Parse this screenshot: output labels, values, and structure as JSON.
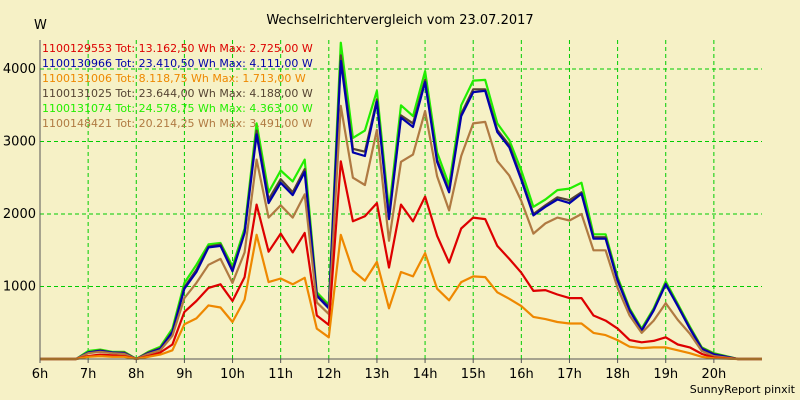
{
  "chart_data": {
    "type": "line",
    "title": "Wechselrichtervergleich vom 23.07.2017",
    "ylabel": "W",
    "xlabel": "",
    "footer": "SunnyReport pinxit",
    "ylim": [
      0,
      4400
    ],
    "xlim": [
      6.0,
      21.0
    ],
    "yticks": [
      1000,
      2000,
      3000,
      4000
    ],
    "xticks": [
      {
        "v": 6,
        "label": "6h"
      },
      {
        "v": 7,
        "label": "7h"
      },
      {
        "v": 8,
        "label": "8h"
      },
      {
        "v": 9,
        "label": "9h"
      },
      {
        "v": 10,
        "label": "10h"
      },
      {
        "v": 11,
        "label": "11h"
      },
      {
        "v": 12,
        "label": "12h"
      },
      {
        "v": 13,
        "label": "13h"
      },
      {
        "v": 14,
        "label": "14h"
      },
      {
        "v": 15,
        "label": "15h"
      },
      {
        "v": 16,
        "label": "16h"
      },
      {
        "v": 17,
        "label": "17h"
      },
      {
        "v": 18,
        "label": "18h"
      },
      {
        "v": 19,
        "label": "19h"
      },
      {
        "v": 20,
        "label": "20h"
      }
    ],
    "grid": true,
    "legend_position": "top-left",
    "x": [
      6.0,
      6.75,
      7.0,
      7.25,
      7.5,
      7.75,
      8.0,
      8.25,
      8.5,
      8.75,
      9.0,
      9.25,
      9.5,
      9.75,
      10.0,
      10.25,
      10.5,
      10.75,
      11.0,
      11.25,
      11.5,
      11.75,
      12.0,
      12.25,
      12.5,
      12.75,
      13.0,
      13.25,
      13.5,
      13.75,
      14.0,
      14.25,
      14.5,
      14.75,
      15.0,
      15.25,
      15.5,
      15.75,
      16.0,
      16.25,
      16.5,
      16.75,
      17.0,
      17.25,
      17.5,
      17.75,
      18.0,
      18.25,
      18.5,
      18.75,
      19.0,
      19.25,
      19.5,
      19.75,
      20.0,
      20.5,
      21.0
    ],
    "series": [
      {
        "name": "1100131074",
        "legend": "1100131074 Tot: 24.578,75 Wh Max: 4.363,00 W",
        "color": "#22ee00",
        "values": [
          0,
          0,
          110,
          130,
          100,
          100,
          0,
          100,
          170,
          420,
          1050,
          1300,
          1580,
          1600,
          1280,
          1800,
          3250,
          2300,
          2600,
          2450,
          2750,
          920,
          750,
          4363,
          3050,
          3150,
          3700,
          2050,
          3500,
          3350,
          3970,
          2850,
          2400,
          3500,
          3840,
          3850,
          3250,
          3020,
          2600,
          2100,
          2200,
          2330,
          2350,
          2430,
          1720,
          1720,
          1130,
          700,
          420,
          700,
          1070,
          760,
          450,
          160,
          80,
          0,
          0
        ]
      },
      {
        "name": "1100131025",
        "legend": "1100131025 Tot: 23.644,00 Wh Max: 4.188,00 W",
        "color": "#554433",
        "values": [
          0,
          0,
          90,
          120,
          90,
          90,
          0,
          90,
          150,
          380,
          990,
          1230,
          1550,
          1580,
          1230,
          1750,
          3150,
          2200,
          2480,
          2300,
          2620,
          890,
          720,
          4188,
          2900,
          2860,
          3580,
          1960,
          3360,
          3250,
          3850,
          2750,
          2320,
          3380,
          3720,
          3720,
          3160,
          2950,
          2500,
          2000,
          2120,
          2230,
          2190,
          2300,
          1680,
          1680,
          1100,
          680,
          400,
          680,
          1040,
          740,
          430,
          150,
          70,
          0,
          0
        ]
      },
      {
        "name": "1100130966",
        "legend": "1100130966 Tot: 23.410,50 Wh Max: 4.111,00 W",
        "color": "#0000aa",
        "values": [
          0,
          0,
          90,
          110,
          90,
          80,
          0,
          80,
          140,
          370,
          970,
          1200,
          1540,
          1560,
          1210,
          1740,
          3100,
          2150,
          2430,
          2260,
          2580,
          870,
          700,
          4111,
          2850,
          2800,
          3550,
          1930,
          3330,
          3200,
          3820,
          2720,
          2300,
          3350,
          3680,
          3700,
          3130,
          2920,
          2470,
          1980,
          2100,
          2200,
          2150,
          2280,
          1660,
          1660,
          1080,
          670,
          390,
          670,
          1030,
          730,
          420,
          140,
          60,
          0,
          0
        ]
      },
      {
        "name": "1100148421",
        "legend": "1100148421 Tot: 20.214,25 Wh Max: 3.491,00 W",
        "color": "#b07a42",
        "values": [
          0,
          0,
          80,
          100,
          80,
          70,
          0,
          70,
          120,
          320,
          840,
          1050,
          1300,
          1380,
          1050,
          1470,
          2750,
          1950,
          2120,
          1950,
          2270,
          780,
          620,
          3491,
          2500,
          2400,
          3160,
          1630,
          2720,
          2820,
          3420,
          2520,
          2050,
          2800,
          3250,
          3270,
          2730,
          2530,
          2180,
          1730,
          1870,
          1950,
          1910,
          2000,
          1500,
          1500,
          980,
          600,
          360,
          530,
          770,
          540,
          350,
          110,
          40,
          0,
          0
        ]
      },
      {
        "name": "1100129553",
        "legend": "1100129553 Tot: 13.162,50 Wh Max: 2.725,00 W",
        "color": "#dd0000",
        "values": [
          0,
          0,
          40,
          60,
          50,
          40,
          0,
          40,
          90,
          200,
          650,
          800,
          980,
          1030,
          800,
          1130,
          2130,
          1480,
          1730,
          1470,
          1740,
          600,
          470,
          2725,
          1900,
          1970,
          2150,
          1260,
          2130,
          1900,
          2240,
          1700,
          1330,
          1800,
          1950,
          1930,
          1560,
          1380,
          1190,
          940,
          950,
          890,
          840,
          840,
          600,
          530,
          420,
          260,
          230,
          250,
          300,
          200,
          160,
          70,
          20,
          0,
          0
        ]
      },
      {
        "name": "1100131006",
        "legend": "1100131006 Tot: 8.118,75 Wh Max: 1.713,00 W",
        "color": "#ee8800",
        "values": [
          0,
          0,
          30,
          40,
          30,
          30,
          0,
          30,
          60,
          120,
          480,
          560,
          740,
          710,
          510,
          820,
          1713,
          1060,
          1110,
          1030,
          1120,
          420,
          300,
          1713,
          1220,
          1080,
          1340,
          700,
          1200,
          1140,
          1460,
          970,
          810,
          1060,
          1140,
          1130,
          920,
          830,
          730,
          580,
          550,
          510,
          490,
          490,
          360,
          330,
          260,
          170,
          150,
          160,
          160,
          120,
          80,
          30,
          10,
          0,
          0
        ]
      }
    ],
    "legend_order": [
      "1100129553",
      "1100130966",
      "1100131006",
      "1100131025",
      "1100131074",
      "1100148421"
    ]
  }
}
